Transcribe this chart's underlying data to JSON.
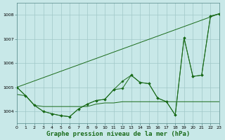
{
  "background_color": "#c8e8e8",
  "grid_color": "#a0c8c8",
  "line_color": "#1a6b1a",
  "marker_color": "#1a6b1a",
  "xlabel": "Graphe pression niveau de la mer (hPa)",
  "xlabel_fontsize": 6.5,
  "xlim": [
    0,
    23
  ],
  "ylim": [
    1003.5,
    1008.5
  ],
  "yticks": [
    1004,
    1005,
    1006,
    1007,
    1008
  ],
  "xticks": [
    0,
    1,
    2,
    3,
    4,
    5,
    6,
    7,
    8,
    9,
    10,
    11,
    12,
    13,
    14,
    15,
    16,
    17,
    18,
    19,
    20,
    21,
    22,
    23
  ],
  "line_straight": [
    [
      0,
      23
    ],
    [
      1005.0,
      1008.05
    ]
  ],
  "line_flat": [
    1004.7,
    1004.65,
    1004.25,
    1004.2,
    1004.2,
    1004.2,
    1004.2,
    1004.2,
    1004.2,
    1004.3,
    1004.35,
    1004.35,
    1004.4,
    1004.4,
    1004.4,
    1004.4,
    1004.4,
    1004.4,
    1004.4,
    1004.4,
    1004.4,
    1004.4,
    1004.4,
    1004.4
  ],
  "series_a": [
    1005.0,
    1004.65,
    1004.25,
    1004.0,
    1003.9,
    1003.82,
    1003.78,
    1004.1,
    1004.3,
    1004.45,
    1004.5,
    1004.9,
    1004.95,
    1005.5,
    1005.2,
    1005.15,
    1004.55,
    1004.4,
    1003.85,
    1007.05,
    1005.45,
    1005.5,
    1007.95,
    1008.05
  ],
  "series_b": [
    1005.0,
    1004.65,
    1004.25,
    1004.0,
    1003.9,
    1003.82,
    1003.78,
    1004.1,
    1004.3,
    1004.45,
    1004.5,
    1004.9,
    1005.25,
    1005.5,
    1005.2,
    1005.15,
    1004.55,
    1004.4,
    1003.85,
    1007.05,
    1005.45,
    1005.5,
    1007.95,
    1008.05
  ]
}
